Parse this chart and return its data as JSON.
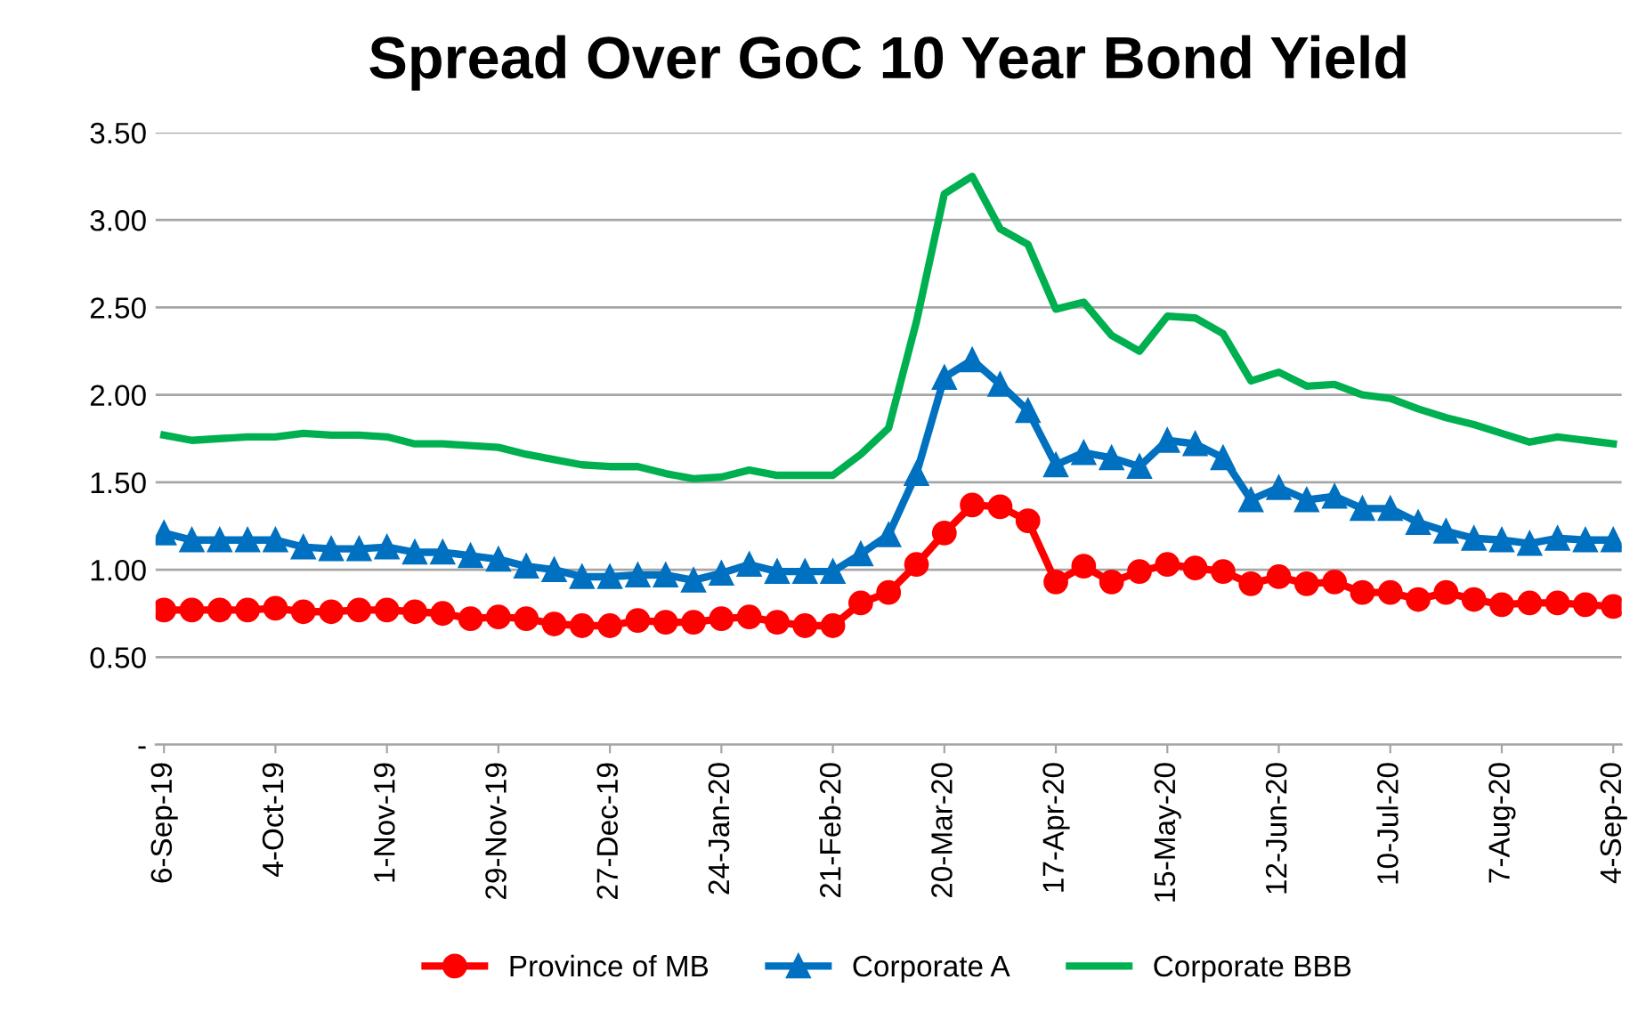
{
  "chart_data": {
    "type": "line",
    "title": "Spread Over GoC 10 Year Bond Yield",
    "categories": [
      "6-Sep-19",
      null,
      null,
      null,
      "4-Oct-19",
      null,
      null,
      null,
      "1-Nov-19",
      null,
      null,
      null,
      "29-Nov-19",
      null,
      null,
      null,
      "27-Dec-19",
      null,
      null,
      null,
      "24-Jan-20",
      null,
      null,
      null,
      "21-Feb-20",
      null,
      null,
      null,
      "20-Mar-20",
      null,
      null,
      null,
      "17-Apr-20",
      null,
      null,
      null,
      "15-May-20",
      null,
      null,
      null,
      "12-Jun-20",
      null,
      null,
      null,
      "10-Jul-20",
      null,
      null,
      null,
      "7-Aug-20",
      null,
      null,
      null,
      "4-Sep-20"
    ],
    "series": [
      {
        "name": "Province of MB",
        "color": "#ff0000",
        "marker": "circle",
        "values": [
          0.77,
          0.77,
          0.77,
          0.77,
          0.78,
          0.76,
          0.76,
          0.77,
          0.77,
          0.76,
          0.75,
          0.72,
          0.73,
          0.72,
          0.69,
          0.68,
          0.68,
          0.71,
          0.7,
          0.7,
          0.72,
          0.73,
          0.7,
          0.68,
          0.68,
          0.81,
          0.87,
          1.03,
          1.21,
          1.37,
          1.36,
          1.28,
          0.93,
          1.02,
          0.93,
          0.99,
          1.03,
          1.01,
          0.99,
          0.92,
          0.96,
          0.92,
          0.93,
          0.87,
          0.87,
          0.83,
          0.87,
          0.83,
          0.8,
          0.81,
          0.81,
          0.8,
          0.79
        ]
      },
      {
        "name": "Corporate A",
        "color": "#0070c0",
        "marker": "triangle",
        "values": [
          1.21,
          1.17,
          1.17,
          1.17,
          1.17,
          1.13,
          1.12,
          1.12,
          1.13,
          1.1,
          1.1,
          1.08,
          1.06,
          1.02,
          1.0,
          0.96,
          0.96,
          0.97,
          0.97,
          0.94,
          0.98,
          1.03,
          0.99,
          0.99,
          0.99,
          1.09,
          1.2,
          1.55,
          2.1,
          2.2,
          2.06,
          1.91,
          1.6,
          1.67,
          1.64,
          1.59,
          1.74,
          1.72,
          1.64,
          1.4,
          1.47,
          1.4,
          1.42,
          1.35,
          1.35,
          1.27,
          1.22,
          1.18,
          1.17,
          1.15,
          1.18,
          1.17,
          1.17
        ]
      },
      {
        "name": "Corporate BBB",
        "color": "#00b050",
        "marker": "none",
        "values": [
          1.77,
          1.74,
          1.75,
          1.76,
          1.76,
          1.78,
          1.77,
          1.77,
          1.76,
          1.72,
          1.72,
          1.71,
          1.7,
          1.66,
          1.63,
          1.6,
          1.59,
          1.59,
          1.55,
          1.52,
          1.53,
          1.57,
          1.54,
          1.54,
          1.54,
          1.66,
          1.81,
          2.42,
          3.15,
          3.25,
          2.95,
          2.86,
          2.49,
          2.53,
          2.34,
          2.25,
          2.45,
          2.44,
          2.35,
          2.08,
          2.13,
          2.05,
          2.06,
          2.0,
          1.98,
          1.92,
          1.87,
          1.83,
          1.78,
          1.73,
          1.76,
          1.74,
          1.72
        ]
      }
    ],
    "ylim": [
      0,
      3.5
    ],
    "yticks": [
      {
        "value": 0,
        "label": "-"
      },
      {
        "value": 0.5,
        "label": "0.50"
      },
      {
        "value": 1.0,
        "label": "1.00"
      },
      {
        "value": 1.5,
        "label": "1.50"
      },
      {
        "value": 2.0,
        "label": "2.00"
      },
      {
        "value": 2.5,
        "label": "2.50"
      },
      {
        "value": 3.0,
        "label": "3.00"
      },
      {
        "value": 3.5,
        "label": "3.50"
      }
    ],
    "grid": "y",
    "legend": "bottom"
  }
}
